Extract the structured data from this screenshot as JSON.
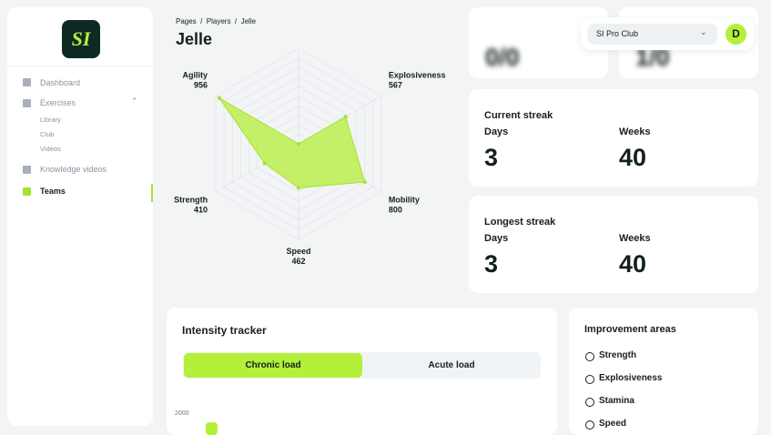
{
  "logo": "SI",
  "sidebar": {
    "nav": [
      {
        "label": "Dashboard"
      },
      {
        "label": "Exercises",
        "children": [
          "Library",
          "Club",
          "Videos"
        ]
      },
      {
        "label": "Knowledge videos"
      },
      {
        "label": "Teams"
      }
    ]
  },
  "header": {
    "breadcrumb": "Pages  /  Players  /  Jelle",
    "title": "Jelle",
    "club": "SI Pro Club",
    "avatar": "D"
  },
  "top_cards": [
    "0/0",
    "1/0"
  ],
  "radar": {
    "rlim": [
      0,
      1000
    ],
    "axes": [
      {
        "label": null,
        "value": 0
      },
      {
        "label": "Explosiveness",
        "value": 567
      },
      {
        "label": "Mobility",
        "value": 800
      },
      {
        "label": "Speed",
        "value": 462
      },
      {
        "label": "Strength",
        "value": 410
      },
      {
        "label": "Agility",
        "value": 956
      }
    ]
  },
  "streaks": [
    {
      "title": "Current streak",
      "days_label": "Days",
      "days": 3,
      "weeks_label": "Weeks",
      "weeks": 40
    },
    {
      "title": "Longest streak",
      "days_label": "Days",
      "days": 3,
      "weeks_label": "Weeks",
      "weeks": 40
    }
  ],
  "intensity": {
    "title": "Intensity tracker",
    "tabs": [
      "Chronic load",
      "Acute load"
    ],
    "y_tick": "2000"
  },
  "improvement": {
    "title": "Improvement areas",
    "items": [
      "Strength",
      "Explosiveness",
      "Stamina",
      "Speed"
    ]
  }
}
